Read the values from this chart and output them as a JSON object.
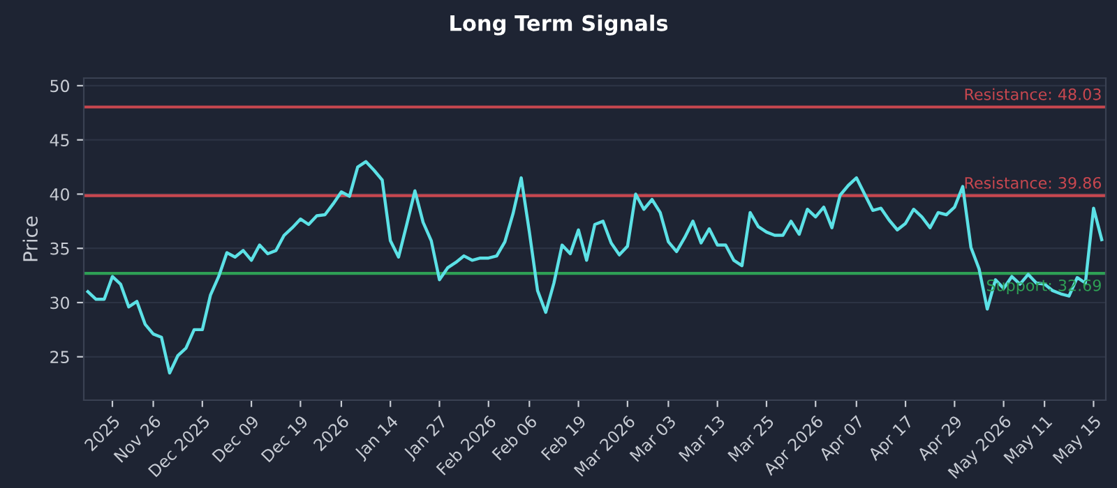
{
  "chart_data": {
    "type": "line",
    "title": "Long Term Signals",
    "ylabel": "Price",
    "categories": [
      null,
      null,
      null,
      "2025",
      null,
      null,
      null,
      null,
      "Nov 26",
      null,
      null,
      null,
      null,
      null,
      "Dec 2025",
      null,
      null,
      null,
      null,
      null,
      "Dec 09",
      null,
      null,
      null,
      null,
      null,
      "Dec 19",
      null,
      null,
      null,
      null,
      "2026",
      null,
      null,
      null,
      null,
      null,
      "Jan 14",
      null,
      null,
      null,
      null,
      null,
      "Jan 27",
      null,
      null,
      null,
      null,
      null,
      "Feb 2026",
      null,
      null,
      null,
      null,
      "Feb 06",
      null,
      null,
      null,
      null,
      null,
      "Feb 19",
      null,
      null,
      null,
      null,
      null,
      "Mar 2026",
      null,
      null,
      null,
      null,
      "Mar 03",
      null,
      null,
      null,
      null,
      null,
      "Mar 13",
      null,
      null,
      null,
      null,
      null,
      "Mar 25",
      null,
      null,
      null,
      null,
      null,
      "Apr 2026",
      null,
      null,
      null,
      null,
      "Apr 07",
      null,
      null,
      null,
      null,
      null,
      "Apr 17",
      null,
      null,
      null,
      null,
      null,
      "Apr 29",
      null,
      null,
      null,
      null,
      null,
      "May 2026",
      null,
      null,
      null,
      null,
      "May 11",
      null,
      null,
      null,
      null,
      null,
      "May 15",
      null
    ],
    "series": [
      {
        "color": "#5ce1e6",
        "values": [
          31.0,
          30.3,
          30.3,
          32.4,
          31.7,
          29.6,
          30.1,
          28.0,
          27.1,
          26.8,
          23.5,
          25.1,
          25.8,
          27.5,
          27.5,
          30.7,
          32.4,
          34.6,
          34.2,
          34.8,
          33.9,
          35.3,
          34.5,
          34.8,
          36.2,
          36.9,
          37.7,
          37.2,
          38.0,
          38.1,
          39.1,
          40.2,
          39.8,
          42.5,
          43.0,
          42.2,
          41.3,
          35.7,
          34.2,
          37.2,
          40.3,
          37.4,
          35.7,
          32.1,
          33.2,
          33.7,
          34.3,
          33.9,
          34.1,
          34.1,
          34.3,
          35.6,
          38.2,
          41.5,
          36.5,
          31.1,
          29.1,
          31.8,
          35.3,
          34.5,
          36.7,
          33.9,
          37.2,
          37.5,
          35.5,
          34.4,
          35.2,
          40.0,
          38.6,
          39.5,
          38.3,
          35.6,
          34.7,
          36.0,
          37.5,
          35.5,
          36.8,
          35.3,
          35.3,
          33.9,
          33.4,
          38.3,
          37.0,
          36.5,
          36.2,
          36.2,
          37.5,
          36.3,
          38.6,
          37.9,
          38.8,
          36.9,
          39.9,
          40.8,
          41.5,
          40.0,
          38.5,
          38.7,
          37.6,
          36.7,
          37.3,
          38.6,
          37.9,
          36.9,
          38.3,
          38.1,
          38.8,
          40.7,
          35.1,
          33.1,
          29.4,
          32.1,
          31.3,
          32.4,
          31.7,
          32.6,
          31.8,
          31.7,
          31.1,
          30.8,
          30.6,
          32.3,
          31.8,
          38.7,
          35.8
        ]
      }
    ],
    "ylim": [
      21,
      50.7
    ],
    "yticks": [
      25,
      30,
      35,
      40,
      45,
      50
    ],
    "grid": "y",
    "marker": "none",
    "line_style": "solid",
    "ref_lines": [
      {
        "axis": "y",
        "value": 48.03,
        "label": "Resistance: 48.03",
        "color": "#c8474f"
      },
      {
        "axis": "y",
        "value": 39.86,
        "label": "Resistance: 39.86",
        "color": "#c8474f"
      },
      {
        "axis": "y",
        "value": 32.69,
        "label": "Support: 32.69",
        "color": "#2ea055"
      }
    ]
  }
}
